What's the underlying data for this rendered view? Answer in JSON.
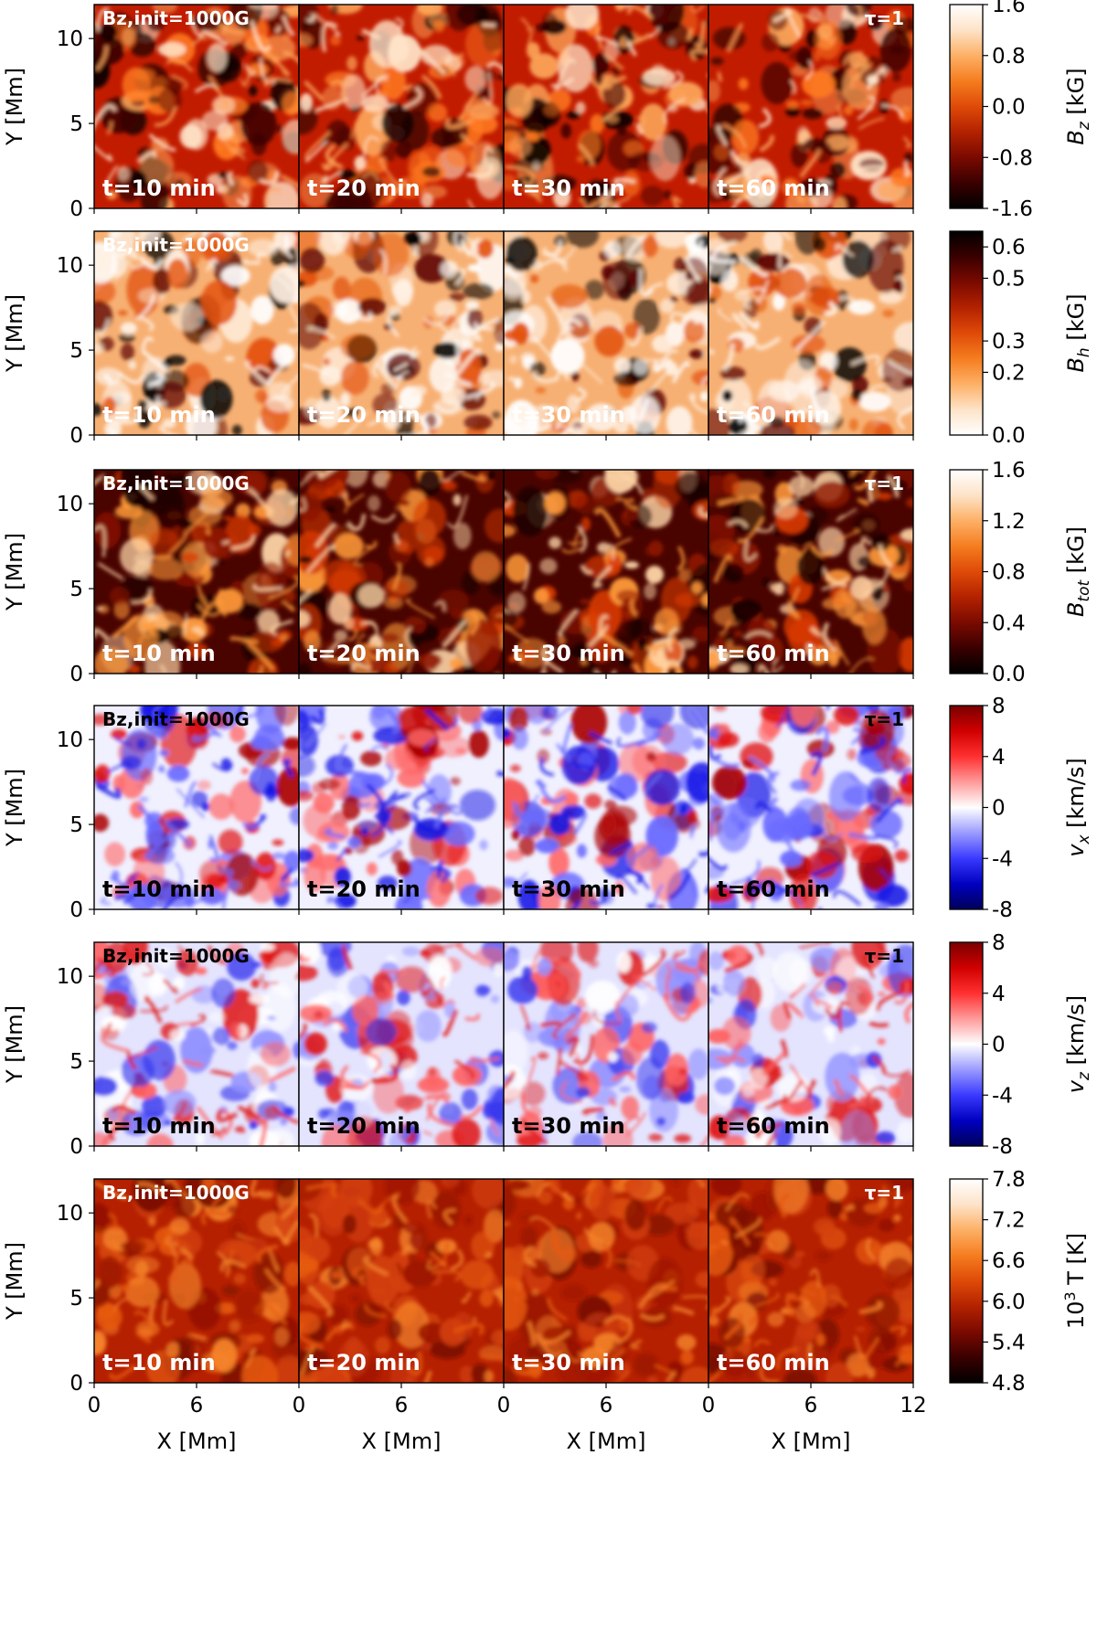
{
  "chart_data": {
    "type": "heatmap",
    "title": "",
    "common_panel_labels": {
      "init_label": "Bz,init=1000G",
      "tau_label": "τ=1",
      "time_labels": [
        "t=10 min",
        "t=20 min",
        "t=30 min",
        "t=60 min"
      ]
    },
    "x_axis": {
      "label": "X [Mm]",
      "range": [
        0,
        12
      ],
      "ticks_per_panel": [
        "0",
        "6"
      ],
      "last_tick": "12"
    },
    "y_axis": {
      "label": "Y [Mm]",
      "range": [
        0,
        12
      ],
      "ticks": [
        "0",
        "5",
        "10"
      ]
    },
    "rows": [
      {
        "quantity": "Bz",
        "colorbar_label": "B_z [kG]",
        "colorbar_label_symbol": "B",
        "colorbar_label_sub": "z",
        "colorbar_label_unit": " [kG]",
        "colormap": "red-temperature",
        "range": [
          -1.6,
          1.6
        ],
        "ticks": [
          "1.6",
          "0.8",
          "0.0",
          "-0.8",
          "-1.6"
        ],
        "show_tau_label": true
      },
      {
        "quantity": "Bh",
        "colorbar_label": "B_h [kG]",
        "colorbar_label_symbol": "B",
        "colorbar_label_sub": "h",
        "colorbar_label_unit": " [kG]",
        "colormap": "red-temperature-reversed",
        "range": [
          0.0,
          0.65
        ],
        "ticks": [
          "0.6",
          "0.5",
          "0.3",
          "0.2",
          "0.0"
        ],
        "show_tau_label": false
      },
      {
        "quantity": "Btot",
        "colorbar_label": "B_tot [kG]",
        "colorbar_label_symbol": "B",
        "colorbar_label_sub": "tot",
        "colorbar_label_unit": " [kG]",
        "colormap": "red-temperature",
        "range": [
          0.0,
          1.6
        ],
        "ticks": [
          "1.6",
          "1.2",
          "0.8",
          "0.4",
          "0.0"
        ],
        "show_tau_label": true
      },
      {
        "quantity": "vx",
        "colorbar_label": "v_x [km/s]",
        "colorbar_label_symbol": "v",
        "colorbar_label_sub": "x",
        "colorbar_label_unit": " [km/s]",
        "colormap": "seismic",
        "range": [
          -8,
          8
        ],
        "ticks": [
          "8",
          "4",
          "0",
          "-4",
          "-8"
        ],
        "show_tau_label": true
      },
      {
        "quantity": "vz",
        "colorbar_label": "v_z [km/s]",
        "colorbar_label_symbol": "v",
        "colorbar_label_sub": "z",
        "colorbar_label_unit": " [km/s]",
        "colormap": "seismic",
        "range": [
          -8,
          8
        ],
        "ticks": [
          "8",
          "4",
          "0",
          "-4",
          "-8"
        ],
        "show_tau_label": true
      },
      {
        "quantity": "T",
        "colorbar_label": "10^3 T [K]",
        "colorbar_label_symbol": "10",
        "colorbar_label_sup": "3",
        "colorbar_label_unit": " T [K]",
        "colormap": "red-temperature",
        "range": [
          4.8,
          7.8
        ],
        "ticks": [
          "7.8",
          "7.2",
          "6.6",
          "6.0",
          "5.4",
          "4.8"
        ],
        "show_tau_label": true
      }
    ]
  }
}
